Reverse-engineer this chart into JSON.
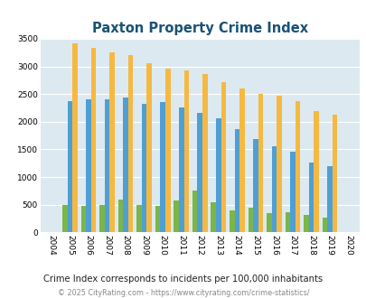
{
  "title": "Paxton Property Crime Index",
  "years": [
    2004,
    2005,
    2006,
    2007,
    2008,
    2009,
    2010,
    2011,
    2012,
    2013,
    2014,
    2015,
    2016,
    2017,
    2018,
    2019,
    2020
  ],
  "paxton": [
    0,
    500,
    480,
    500,
    600,
    500,
    480,
    570,
    760,
    540,
    400,
    450,
    350,
    360,
    310,
    270,
    0
  ],
  "massachusetts": [
    0,
    2380,
    2400,
    2400,
    2440,
    2320,
    2360,
    2260,
    2160,
    2060,
    1860,
    1680,
    1560,
    1460,
    1270,
    1190,
    0
  ],
  "national": [
    0,
    3420,
    3340,
    3260,
    3210,
    3050,
    2960,
    2920,
    2870,
    2720,
    2600,
    2500,
    2470,
    2380,
    2200,
    2120,
    0
  ],
  "paxton_color": "#7ab648",
  "mass_color": "#4f9fd4",
  "national_color": "#f5b942",
  "bg_color": "#dde9f0",
  "ylim": [
    0,
    3500
  ],
  "yticks": [
    0,
    500,
    1000,
    1500,
    2000,
    2500,
    3000,
    3500
  ],
  "subtitle": "Crime Index corresponds to incidents per 100,000 inhabitants",
  "footer": "© 2025 CityRating.com - https://www.cityrating.com/crime-statistics/",
  "title_color": "#1a5276",
  "subtitle_color": "#222222",
  "footer_color": "#888888"
}
